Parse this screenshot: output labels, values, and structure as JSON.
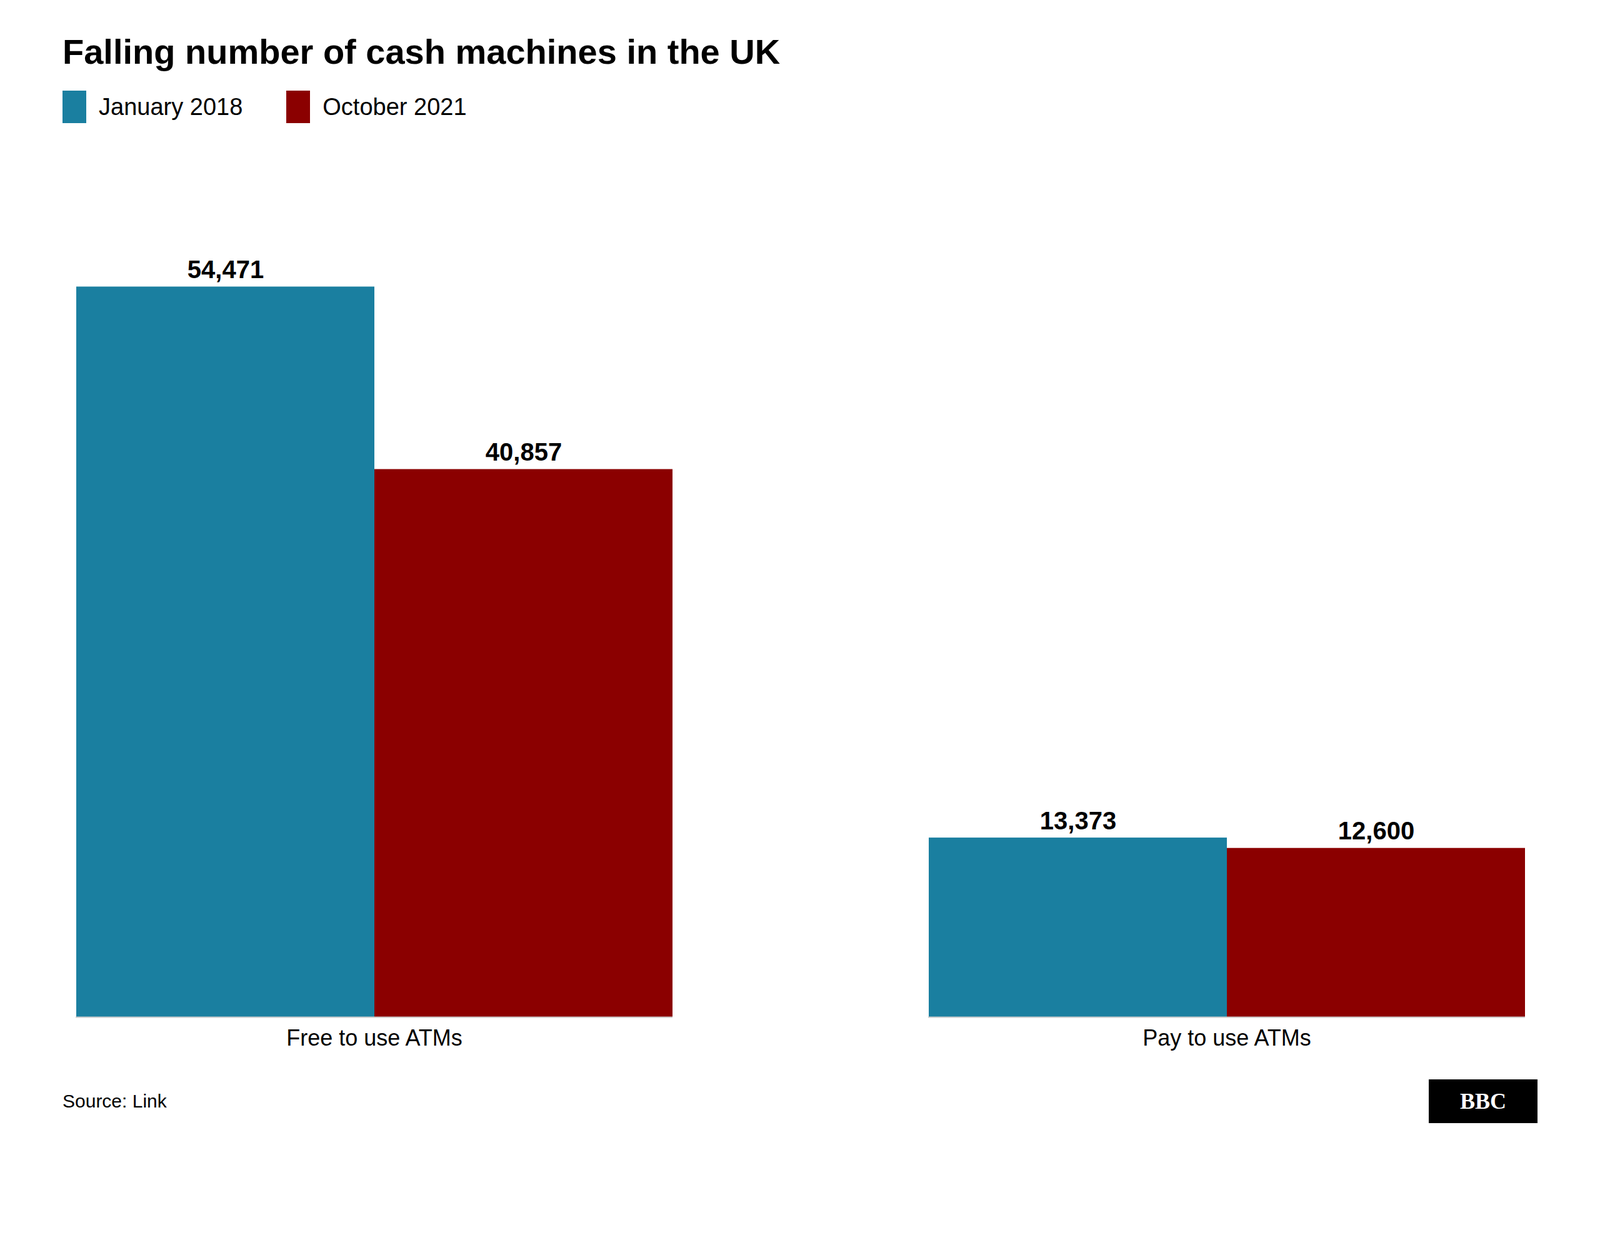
{
  "chart_data": {
    "type": "bar",
    "title": "Falling number of cash machines in the UK",
    "categories": [
      "Free to use ATMs",
      "Pay to use ATMs"
    ],
    "series": [
      {
        "name": "January 2018",
        "color": "#1a7fa0",
        "values": [
          54471,
          13373
        ],
        "value_labels": [
          "54,471",
          "13,373"
        ]
      },
      {
        "name": "October 2021",
        "color": "#8b0000",
        "values": [
          40857,
          12600
        ],
        "value_labels": [
          "40,857",
          "12,600"
        ]
      }
    ],
    "ylim": [
      0,
      62000
    ],
    "data_labels": true,
    "tick_labels": "x",
    "grid": false,
    "legend": "upper left",
    "source": "Source: Link",
    "annotations": [
      "BBC"
    ]
  }
}
